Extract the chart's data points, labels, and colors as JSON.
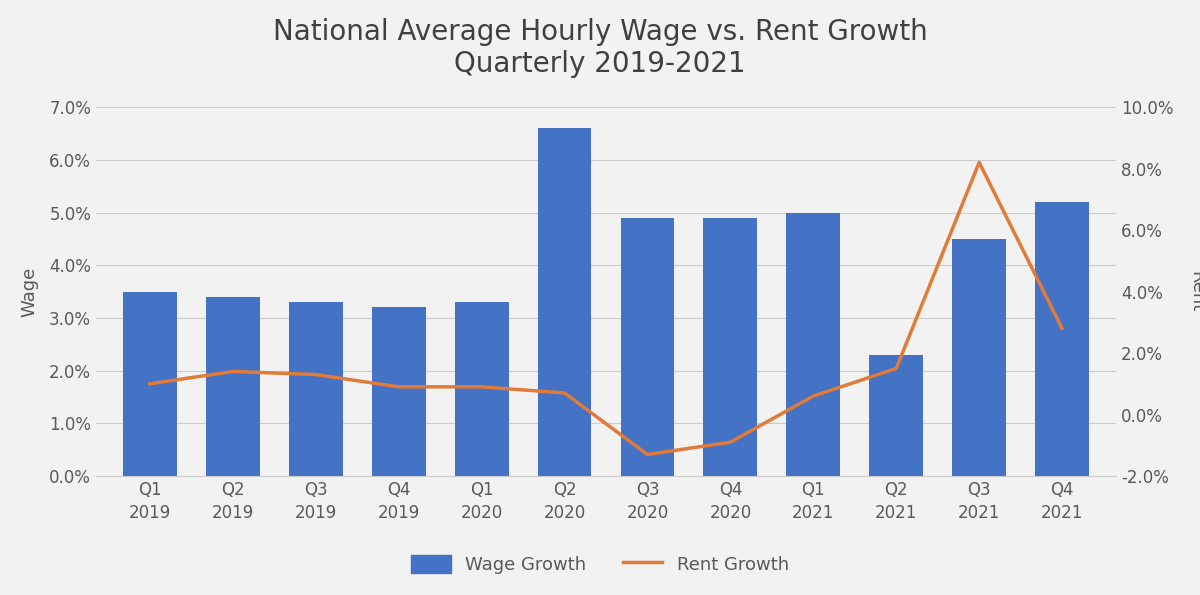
{
  "title": "National Average Hourly Wage vs. Rent Growth\nQuarterly 2019-2021",
  "categories": [
    "Q1\n2019",
    "Q2\n2019",
    "Q3\n2019",
    "Q4\n2019",
    "Q1\n2020",
    "Q2\n2020",
    "Q3\n2020",
    "Q4\n2020",
    "Q1\n2021",
    "Q2\n2021",
    "Q3\n2021",
    "Q4\n2021"
  ],
  "wage_values": [
    0.035,
    0.034,
    0.033,
    0.032,
    0.033,
    0.066,
    0.049,
    0.049,
    0.05,
    0.023,
    0.045,
    0.052
  ],
  "rent_values": [
    0.01,
    0.014,
    0.013,
    0.009,
    0.009,
    0.007,
    -0.013,
    -0.009,
    0.006,
    0.015,
    0.082,
    0.028
  ],
  "bar_color": "#4472C4",
  "line_color": "#E07B39",
  "wage_ylabel": "Wage",
  "rent_ylabel": "Rent",
  "wage_ylim": [
    0.0,
    0.07
  ],
  "rent_ylim": [
    -0.02,
    0.1
  ],
  "wage_yticks": [
    0.0,
    0.01,
    0.02,
    0.03,
    0.04,
    0.05,
    0.06,
    0.07
  ],
  "rent_yticks": [
    -0.02,
    0.0,
    0.02,
    0.04,
    0.06,
    0.08,
    0.1
  ],
  "legend_wage": "Wage Growth",
  "legend_rent": "Rent Growth",
  "background_color": "#f2f2f2",
  "plot_bg_color": "#f2f2f2",
  "title_fontsize": 20,
  "axis_fontsize": 13,
  "tick_fontsize": 12,
  "legend_fontsize": 13,
  "tick_color": "#595959",
  "label_color": "#595959",
  "grid_color": "#cccccc"
}
